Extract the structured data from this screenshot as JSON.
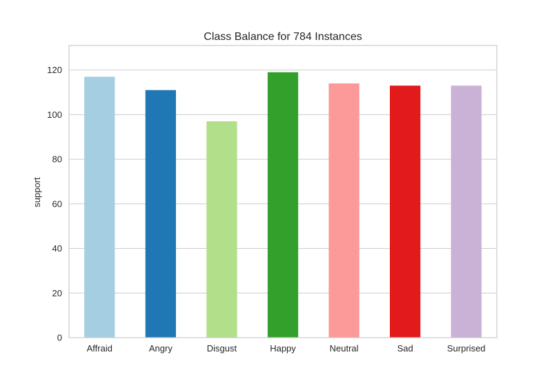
{
  "chart_data": {
    "type": "bar",
    "title": "Class Balance for 784 Instances",
    "xlabel": "",
    "ylabel": "support",
    "categories": [
      "Affraid",
      "Angry",
      "Disgust",
      "Happy",
      "Neutral",
      "Sad",
      "Surprised"
    ],
    "values": [
      117,
      111,
      97,
      119,
      114,
      113,
      113
    ],
    "colors": [
      "#a6cee3",
      "#1f78b4",
      "#b2df8a",
      "#33a02c",
      "#fb9a99",
      "#e31a1c",
      "#cab2d6"
    ],
    "ylim": [
      0,
      131
    ],
    "yticks": [
      0,
      20,
      40,
      60,
      80,
      100,
      120
    ],
    "grid": true,
    "legend": "none"
  }
}
